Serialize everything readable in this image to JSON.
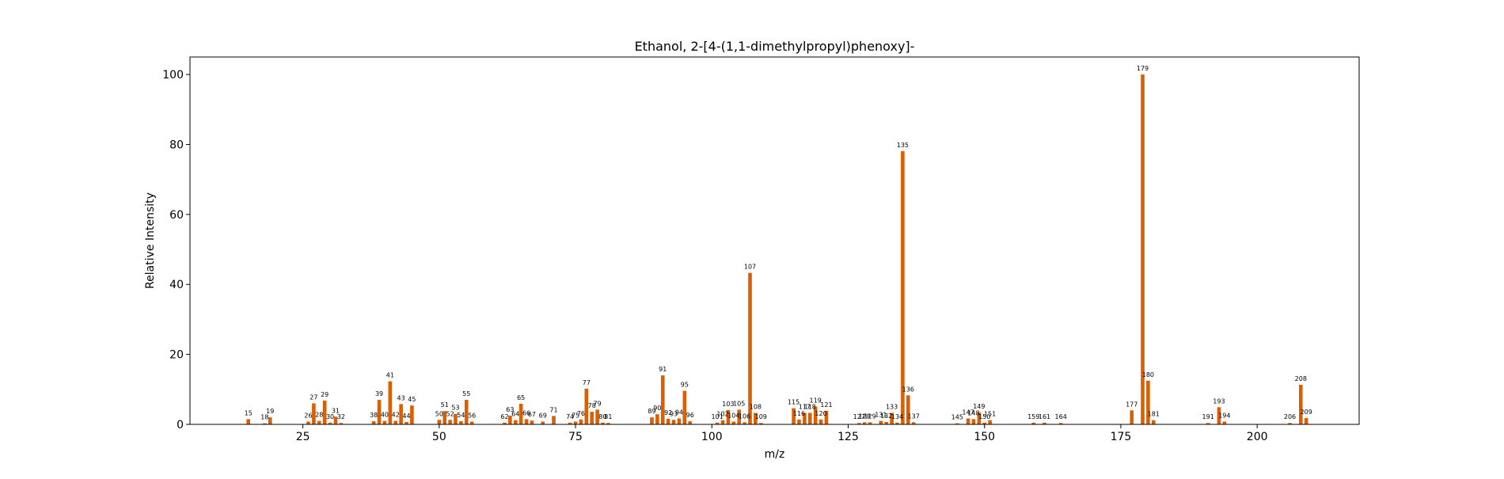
{
  "chart_data": {
    "type": "bar",
    "title": "Ethanol, 2-[4-(1,1-dimethylpropyl)phenoxy]-",
    "xlabel": "m/z",
    "ylabel": "Relative Intensity",
    "xlim": [
      4.3,
      218.7
    ],
    "ylim": [
      0,
      105
    ],
    "xticks": [
      25,
      50,
      75,
      100,
      125,
      150,
      175,
      200
    ],
    "yticks": [
      0,
      20,
      40,
      60,
      80,
      100
    ],
    "bar_color": "#d95f02",
    "grid": false,
    "legend": "none",
    "peaks": [
      {
        "mz": 15,
        "intensity": 1.5
      },
      {
        "mz": 18,
        "intensity": 0.3
      },
      {
        "mz": 19,
        "intensity": 2.0
      },
      {
        "mz": 26,
        "intensity": 0.8
      },
      {
        "mz": 27,
        "intensity": 6.0
      },
      {
        "mz": 28,
        "intensity": 1.0
      },
      {
        "mz": 29,
        "intensity": 6.8
      },
      {
        "mz": 30,
        "intensity": 0.5
      },
      {
        "mz": 31,
        "intensity": 2.2
      },
      {
        "mz": 32,
        "intensity": 0.4
      },
      {
        "mz": 38,
        "intensity": 0.9
      },
      {
        "mz": 39,
        "intensity": 7.0
      },
      {
        "mz": 40,
        "intensity": 1.0
      },
      {
        "mz": 41,
        "intensity": 12.3
      },
      {
        "mz": 42,
        "intensity": 1.0
      },
      {
        "mz": 43,
        "intensity": 5.8
      },
      {
        "mz": 44,
        "intensity": 0.7
      },
      {
        "mz": 45,
        "intensity": 5.4
      },
      {
        "mz": 50,
        "intensity": 1.3
      },
      {
        "mz": 51,
        "intensity": 3.8
      },
      {
        "mz": 52,
        "intensity": 1.3
      },
      {
        "mz": 53,
        "intensity": 3.0
      },
      {
        "mz": 54,
        "intensity": 0.9
      },
      {
        "mz": 55,
        "intensity": 7.0
      },
      {
        "mz": 56,
        "intensity": 0.8
      },
      {
        "mz": 62,
        "intensity": 0.5
      },
      {
        "mz": 63,
        "intensity": 2.5
      },
      {
        "mz": 64,
        "intensity": 1.2
      },
      {
        "mz": 65,
        "intensity": 5.9
      },
      {
        "mz": 66,
        "intensity": 1.5
      },
      {
        "mz": 67,
        "intensity": 1.1
      },
      {
        "mz": 69,
        "intensity": 0.8
      },
      {
        "mz": 71,
        "intensity": 2.4
      },
      {
        "mz": 74,
        "intensity": 0.5
      },
      {
        "mz": 75,
        "intensity": 0.8
      },
      {
        "mz": 76,
        "intensity": 1.4
      },
      {
        "mz": 77,
        "intensity": 10.2
      },
      {
        "mz": 78,
        "intensity": 3.6
      },
      {
        "mz": 79,
        "intensity": 4.2
      },
      {
        "mz": 80,
        "intensity": 0.5
      },
      {
        "mz": 81,
        "intensity": 0.4
      },
      {
        "mz": 89,
        "intensity": 2.0
      },
      {
        "mz": 90,
        "intensity": 2.9
      },
      {
        "mz": 91,
        "intensity": 14.0
      },
      {
        "mz": 92,
        "intensity": 1.6
      },
      {
        "mz": 93,
        "intensity": 1.3
      },
      {
        "mz": 94,
        "intensity": 1.7
      },
      {
        "mz": 95,
        "intensity": 9.6
      },
      {
        "mz": 96,
        "intensity": 0.9
      },
      {
        "mz": 101,
        "intensity": 0.5
      },
      {
        "mz": 102,
        "intensity": 1.2
      },
      {
        "mz": 103,
        "intensity": 4.1
      },
      {
        "mz": 104,
        "intensity": 0.8
      },
      {
        "mz": 105,
        "intensity": 4.2
      },
      {
        "mz": 106,
        "intensity": 0.6
      },
      {
        "mz": 107,
        "intensity": 43.3
      },
      {
        "mz": 108,
        "intensity": 3.3
      },
      {
        "mz": 109,
        "intensity": 0.4
      },
      {
        "mz": 115,
        "intensity": 4.6
      },
      {
        "mz": 116,
        "intensity": 1.4
      },
      {
        "mz": 117,
        "intensity": 3.3
      },
      {
        "mz": 118,
        "intensity": 3.3
      },
      {
        "mz": 119,
        "intensity": 5.1
      },
      {
        "mz": 120,
        "intensity": 1.4
      },
      {
        "mz": 121,
        "intensity": 3.9
      },
      {
        "mz": 127,
        "intensity": 0.4
      },
      {
        "mz": 128,
        "intensity": 0.6
      },
      {
        "mz": 129,
        "intensity": 0.6
      },
      {
        "mz": 131,
        "intensity": 1.0
      },
      {
        "mz": 132,
        "intensity": 0.7
      },
      {
        "mz": 133,
        "intensity": 3.3
      },
      {
        "mz": 134,
        "intensity": 0.5
      },
      {
        "mz": 135,
        "intensity": 78.1
      },
      {
        "mz": 136,
        "intensity": 8.3
      },
      {
        "mz": 137,
        "intensity": 0.6
      },
      {
        "mz": 145,
        "intensity": 0.3
      },
      {
        "mz": 147,
        "intensity": 1.7
      },
      {
        "mz": 148,
        "intensity": 1.5
      },
      {
        "mz": 149,
        "intensity": 3.4
      },
      {
        "mz": 150,
        "intensity": 0.5
      },
      {
        "mz": 151,
        "intensity": 1.2
      },
      {
        "mz": 159,
        "intensity": 0.5
      },
      {
        "mz": 161,
        "intensity": 0.5
      },
      {
        "mz": 164,
        "intensity": 0.4
      },
      {
        "mz": 177,
        "intensity": 4.0
      },
      {
        "mz": 179,
        "intensity": 100.0
      },
      {
        "mz": 180,
        "intensity": 12.5
      },
      {
        "mz": 181,
        "intensity": 1.2
      },
      {
        "mz": 191,
        "intensity": 0.4
      },
      {
        "mz": 193,
        "intensity": 4.9
      },
      {
        "mz": 194,
        "intensity": 0.8
      },
      {
        "mz": 206,
        "intensity": 0.4
      },
      {
        "mz": 208,
        "intensity": 11.3
      },
      {
        "mz": 209,
        "intensity": 1.8
      }
    ]
  }
}
